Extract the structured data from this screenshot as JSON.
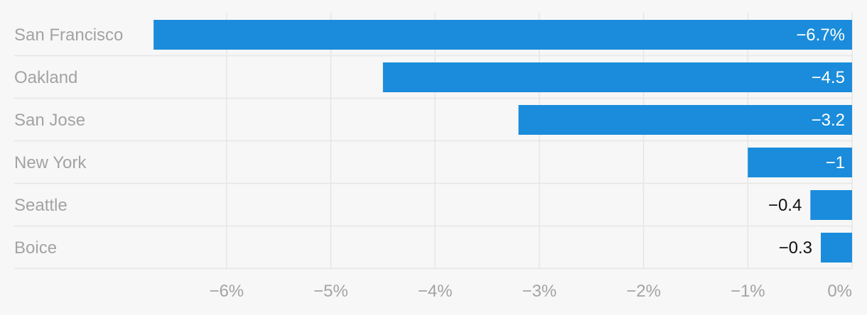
{
  "chart_data": {
    "type": "bar",
    "orientation": "horizontal",
    "categories": [
      "San Francisco",
      "Oakland",
      "San Jose",
      "New York",
      "Seattle",
      "Boice"
    ],
    "values": [
      -6.7,
      -4.5,
      -3.2,
      -1,
      -0.4,
      -0.3
    ],
    "data_labels": [
      "−6.7%",
      "−4.5",
      "−3.2",
      "−1",
      "−0.4",
      "−0.3"
    ],
    "x_ticks": [
      -6,
      -5,
      -4,
      -3,
      -2,
      -1,
      0
    ],
    "x_tick_labels": [
      "−6%",
      "−5%",
      "−4%",
      "−3%",
      "−2%",
      "−1%",
      "0%"
    ],
    "xlim": [
      -7.04,
      0
    ],
    "grid": true,
    "legend": "none",
    "title": "",
    "xlabel": "",
    "ylabel": ""
  },
  "colors": {
    "bar": "#1a8cdb",
    "label_inside": "#ffffff",
    "label_outside": "#111111",
    "category_text": "#a3a3a3",
    "tick_text": "#a3a3a3",
    "gridline": "#e6e6e6",
    "row_divider": "#e6e6e6",
    "background": "#f7f7f7"
  }
}
